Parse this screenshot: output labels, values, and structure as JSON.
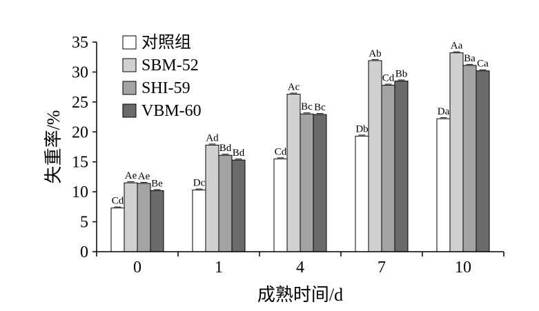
{
  "chart_data": {
    "type": "bar",
    "title": "",
    "xlabel": "成熟时间/d",
    "ylabel": "失重率/%",
    "categories": [
      "0",
      "1",
      "4",
      "7",
      "10"
    ],
    "ylim": [
      0,
      35
    ],
    "yticks": [
      "0",
      "5",
      "10",
      "15",
      "20",
      "25",
      "30",
      "35"
    ],
    "grid": false,
    "legend_position": "top-left",
    "error_bars": true,
    "series": [
      {
        "name": "对照组",
        "color": "#ffffff",
        "values": [
          7.3,
          10.3,
          15.5,
          19.3,
          22.2
        ],
        "labels": [
          "Cd",
          "Dc",
          "Cd",
          "Db",
          "Da"
        ]
      },
      {
        "name": "SBM-52",
        "color": "#d0d0d0",
        "values": [
          11.5,
          17.8,
          26.3,
          31.9,
          33.2
        ],
        "labels": [
          "Ae",
          "Ad",
          "Ac",
          "Ab",
          "Aa"
        ]
      },
      {
        "name": "SHI-59",
        "color": "#a3a3a3",
        "values": [
          11.4,
          16.1,
          23.0,
          27.8,
          31.1
        ],
        "labels": [
          "Ae",
          "Bd",
          "Bc",
          "Cd",
          "Ba"
        ]
      },
      {
        "name": "VBM-60",
        "color": "#6a6a6a",
        "values": [
          10.2,
          15.3,
          22.9,
          28.5,
          30.2
        ],
        "labels": [
          "Be",
          "Bd",
          "Bc",
          "Bb",
          "Ca"
        ]
      }
    ]
  }
}
